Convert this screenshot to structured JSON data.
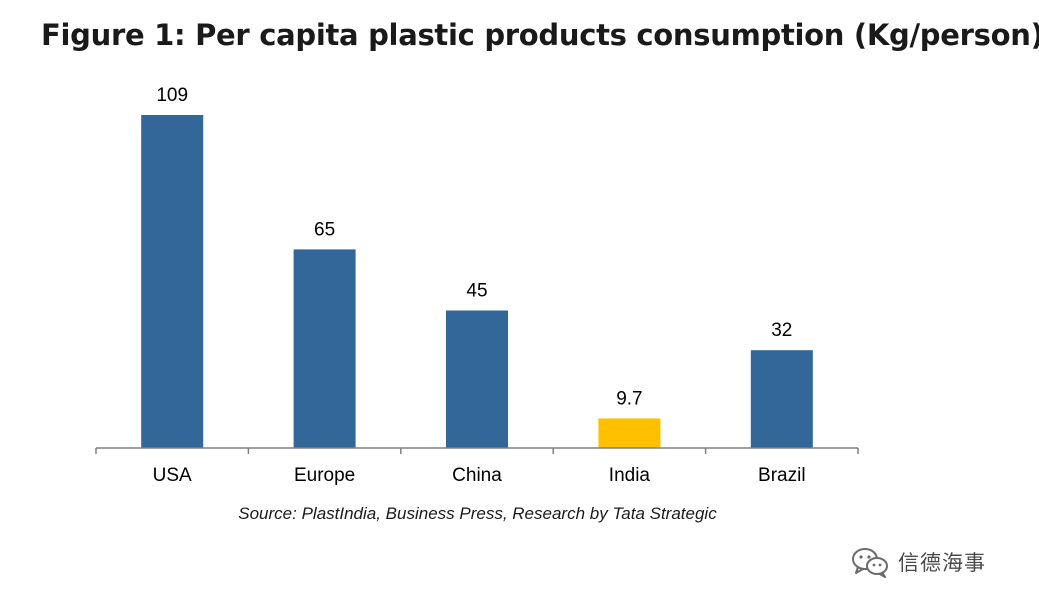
{
  "title": "Figure 1: Per capita plastic products consumption (Kg/person)",
  "source": "Source: PlastIndia, Business Press, Research by Tata Strategic",
  "watermark": {
    "icon": "wechat-icon",
    "text": "信德海事"
  },
  "colors": {
    "bar": "#336699",
    "highlight": "#ffc000",
    "axis": "#7f7f7f",
    "text": "#000000"
  },
  "chart_data": {
    "type": "bar",
    "title": "Figure 1: Per capita plastic products consumption (Kg/person)",
    "categories": [
      "USA",
      "Europe",
      "China",
      "India",
      "Brazil"
    ],
    "values": [
      109,
      65,
      45,
      9.7,
      32
    ],
    "value_labels": [
      "109",
      "65",
      "45",
      "9.7",
      "32"
    ],
    "highlight_index": 3,
    "ylim": [
      0,
      109
    ],
    "grid": false,
    "legend": "none",
    "xlabel": "",
    "ylabel": ""
  }
}
